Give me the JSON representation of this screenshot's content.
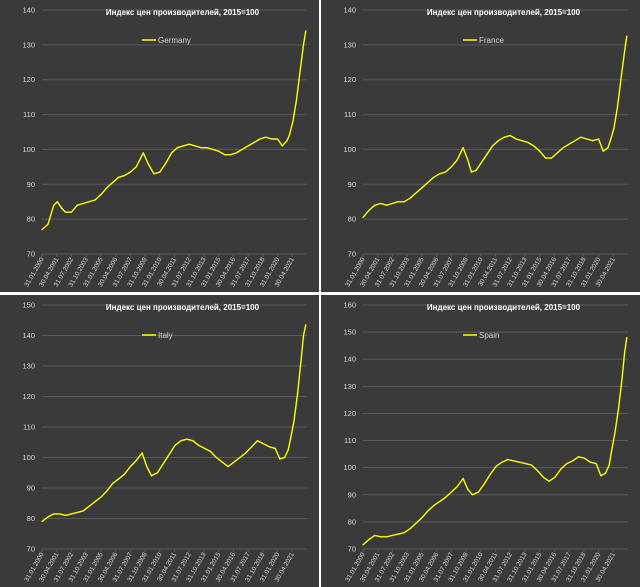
{
  "colors": {
    "background": "#3a3a3a",
    "line": "#ffff00",
    "grid": "#5a5a5a",
    "text": "#d9d9d9",
    "title": "#ffffff"
  },
  "chart_data": [
    {
      "type": "line",
      "title": "Индекс цен производителей, 2015=100",
      "series": [
        {
          "name": "Germany"
        }
      ],
      "ylim": [
        70,
        140
      ],
      "yticks": [
        70,
        80,
        90,
        100,
        110,
        120,
        130,
        140
      ],
      "xticks": [
        "31.01.2000",
        "30.04.2001",
        "31.07.2002",
        "31.10.2003",
        "31.01.2005",
        "30.04.2006",
        "31.07.2007",
        "31.10.2008",
        "31.01.2010",
        "30.04.2011",
        "31.07.2012",
        "31.10.2013",
        "31.01.2015",
        "30.04.2016",
        "31.07.2017",
        "31.10.2018",
        "31.01.2020",
        "30.04.2021"
      ],
      "grid": true,
      "legend": "top-left",
      "points": [
        [
          2000.0,
          77.0
        ],
        [
          2000.5,
          78.5
        ],
        [
          2001.0,
          84.0
        ],
        [
          2001.3,
          85.0
        ],
        [
          2001.7,
          83.0
        ],
        [
          2002.0,
          82.0
        ],
        [
          2002.5,
          82.0
        ],
        [
          2003.0,
          84.0
        ],
        [
          2003.5,
          84.5
        ],
        [
          2004.0,
          85.0
        ],
        [
          2004.5,
          85.5
        ],
        [
          2005.0,
          87.0
        ],
        [
          2005.5,
          89.0
        ],
        [
          2006.0,
          90.5
        ],
        [
          2006.5,
          92.0
        ],
        [
          2007.0,
          92.5
        ],
        [
          2007.5,
          93.5
        ],
        [
          2008.0,
          95.0
        ],
        [
          2008.6,
          99.0
        ],
        [
          2009.0,
          96.0
        ],
        [
          2009.5,
          93.0
        ],
        [
          2010.0,
          93.5
        ],
        [
          2010.5,
          96.0
        ],
        [
          2011.0,
          99.0
        ],
        [
          2011.5,
          100.5
        ],
        [
          2012.0,
          101.0
        ],
        [
          2012.5,
          101.5
        ],
        [
          2013.0,
          101.0
        ],
        [
          2013.5,
          100.5
        ],
        [
          2014.0,
          100.5
        ],
        [
          2014.5,
          100.0
        ],
        [
          2015.0,
          99.5
        ],
        [
          2015.5,
          98.5
        ],
        [
          2016.0,
          98.5
        ],
        [
          2016.5,
          99.0
        ],
        [
          2017.0,
          100.0
        ],
        [
          2017.5,
          101.0
        ],
        [
          2018.0,
          102.0
        ],
        [
          2018.5,
          103.0
        ],
        [
          2019.0,
          103.5
        ],
        [
          2019.5,
          103.0
        ],
        [
          2020.0,
          103.0
        ],
        [
          2020.4,
          101.0
        ],
        [
          2020.8,
          102.5
        ],
        [
          2021.0,
          104.0
        ],
        [
          2021.3,
          108.0
        ],
        [
          2021.6,
          114.0
        ],
        [
          2021.9,
          122.0
        ],
        [
          2022.2,
          130.0
        ],
        [
          2022.4,
          134.0
        ]
      ]
    },
    {
      "type": "line",
      "title": "Индекс цен производителей, 2015=100",
      "series": [
        {
          "name": "France"
        }
      ],
      "ylim": [
        70,
        140
      ],
      "yticks": [
        70,
        80,
        90,
        100,
        110,
        120,
        130,
        140
      ],
      "xticks": [
        "31.01.2000",
        "30.04.2001",
        "31.07.2002",
        "31.10.2003",
        "31.01.2005",
        "30.04.2006",
        "31.07.2007",
        "31.10.2008",
        "31.01.2010",
        "30.04.2011",
        "31.07.2012",
        "31.10.2013",
        "31.01.2015",
        "30.04.2016",
        "31.07.2017",
        "31.10.2018",
        "31.01.2020",
        "30.04.2021"
      ],
      "grid": true,
      "legend": "top-left",
      "points": [
        [
          2000.0,
          80.5
        ],
        [
          2000.5,
          82.5
        ],
        [
          2001.0,
          84.0
        ],
        [
          2001.5,
          84.5
        ],
        [
          2002.0,
          84.0
        ],
        [
          2002.5,
          84.5
        ],
        [
          2003.0,
          85.0
        ],
        [
          2003.5,
          85.0
        ],
        [
          2004.0,
          86.0
        ],
        [
          2004.5,
          87.5
        ],
        [
          2005.0,
          89.0
        ],
        [
          2005.5,
          90.5
        ],
        [
          2006.0,
          92.0
        ],
        [
          2006.5,
          93.0
        ],
        [
          2007.0,
          93.5
        ],
        [
          2007.5,
          95.0
        ],
        [
          2008.0,
          97.0
        ],
        [
          2008.5,
          100.5
        ],
        [
          2008.9,
          97.0
        ],
        [
          2009.2,
          93.5
        ],
        [
          2009.6,
          94.0
        ],
        [
          2010.0,
          96.0
        ],
        [
          2010.5,
          98.5
        ],
        [
          2011.0,
          101.0
        ],
        [
          2011.5,
          102.5
        ],
        [
          2012.0,
          103.5
        ],
        [
          2012.5,
          104.0
        ],
        [
          2013.0,
          103.0
        ],
        [
          2013.5,
          102.5
        ],
        [
          2014.0,
          102.0
        ],
        [
          2014.5,
          101.0
        ],
        [
          2015.0,
          99.5
        ],
        [
          2015.5,
          97.5
        ],
        [
          2016.0,
          97.5
        ],
        [
          2016.5,
          99.0
        ],
        [
          2017.0,
          100.5
        ],
        [
          2017.5,
          101.5
        ],
        [
          2018.0,
          102.5
        ],
        [
          2018.5,
          103.5
        ],
        [
          2019.0,
          103.0
        ],
        [
          2019.5,
          102.5
        ],
        [
          2020.0,
          103.0
        ],
        [
          2020.4,
          99.5
        ],
        [
          2020.8,
          100.5
        ],
        [
          2021.0,
          102.5
        ],
        [
          2021.3,
          106.0
        ],
        [
          2021.6,
          112.0
        ],
        [
          2021.9,
          120.0
        ],
        [
          2022.2,
          128.0
        ],
        [
          2022.4,
          132.5
        ]
      ]
    },
    {
      "type": "line",
      "title": "Индекс цен производителей, 2015=100",
      "series": [
        {
          "name": "Italy"
        }
      ],
      "ylim": [
        70,
        150
      ],
      "yticks": [
        70,
        80,
        90,
        100,
        110,
        120,
        130,
        140,
        150
      ],
      "xticks": [
        "31.01.2000",
        "30.04.2001",
        "31.07.2002",
        "31.10.2003",
        "31.01.2005",
        "30.04.2006",
        "31.07.2007",
        "31.10.2008",
        "31.01.2010",
        "30.04.2011",
        "31.07.2012",
        "31.10.2013",
        "31.01.2015",
        "30.04.2016",
        "31.07.2017",
        "31.10.2018",
        "31.01.2020",
        "30.04.2021"
      ],
      "grid": true,
      "legend": "top-left",
      "points": [
        [
          2000.0,
          79.0
        ],
        [
          2000.5,
          80.5
        ],
        [
          2001.0,
          81.5
        ],
        [
          2001.5,
          81.5
        ],
        [
          2002.0,
          81.0
        ],
        [
          2002.5,
          81.5
        ],
        [
          2003.0,
          82.0
        ],
        [
          2003.5,
          82.5
        ],
        [
          2004.0,
          84.0
        ],
        [
          2004.5,
          85.5
        ],
        [
          2005.0,
          87.0
        ],
        [
          2005.5,
          89.0
        ],
        [
          2006.0,
          91.5
        ],
        [
          2006.5,
          93.0
        ],
        [
          2007.0,
          94.5
        ],
        [
          2007.5,
          97.0
        ],
        [
          2008.0,
          99.0
        ],
        [
          2008.5,
          101.5
        ],
        [
          2008.9,
          97.0
        ],
        [
          2009.3,
          94.0
        ],
        [
          2009.8,
          95.0
        ],
        [
          2010.3,
          98.0
        ],
        [
          2010.8,
          101.0
        ],
        [
          2011.3,
          104.0
        ],
        [
          2011.8,
          105.5
        ],
        [
          2012.3,
          106.0
        ],
        [
          2012.8,
          105.5
        ],
        [
          2013.3,
          104.0
        ],
        [
          2013.8,
          103.0
        ],
        [
          2014.3,
          102.0
        ],
        [
          2014.8,
          100.0
        ],
        [
          2015.3,
          98.5
        ],
        [
          2015.8,
          97.0
        ],
        [
          2016.3,
          98.5
        ],
        [
          2016.8,
          100.0
        ],
        [
          2017.3,
          101.5
        ],
        [
          2017.8,
          103.5
        ],
        [
          2018.3,
          105.5
        ],
        [
          2018.8,
          104.5
        ],
        [
          2019.3,
          103.5
        ],
        [
          2019.8,
          103.0
        ],
        [
          2020.2,
          99.5
        ],
        [
          2020.6,
          100.0
        ],
        [
          2020.9,
          102.5
        ],
        [
          2021.1,
          106.0
        ],
        [
          2021.4,
          112.0
        ],
        [
          2021.7,
          121.0
        ],
        [
          2022.0,
          132.0
        ],
        [
          2022.2,
          140.0
        ],
        [
          2022.4,
          143.5
        ]
      ]
    },
    {
      "type": "line",
      "title": "Индекс цен производителей, 2015=100",
      "series": [
        {
          "name": "Spain"
        }
      ],
      "ylim": [
        70,
        160
      ],
      "yticks": [
        70,
        80,
        90,
        100,
        110,
        120,
        130,
        140,
        150,
        160
      ],
      "xticks": [
        "31.01.2000",
        "30.04.2001",
        "31.07.2002",
        "31.10.2003",
        "31.01.2005",
        "30.04.2006",
        "31.07.2007",
        "31.10.2008",
        "31.01.2010",
        "30.04.2011",
        "31.07.2012",
        "31.10.2013",
        "31.01.2015",
        "30.04.2016",
        "31.07.2017",
        "31.10.2018",
        "31.01.2020",
        "30.04.2021"
      ],
      "grid": true,
      "legend": "top-left",
      "points": [
        [
          2000.0,
          71.5
        ],
        [
          2000.5,
          73.5
        ],
        [
          2001.0,
          75.0
        ],
        [
          2001.5,
          74.5
        ],
        [
          2002.0,
          74.5
        ],
        [
          2002.5,
          75.0
        ],
        [
          2003.0,
          75.5
        ],
        [
          2003.5,
          76.0
        ],
        [
          2004.0,
          77.5
        ],
        [
          2004.5,
          79.5
        ],
        [
          2005.0,
          81.5
        ],
        [
          2005.5,
          84.0
        ],
        [
          2006.0,
          86.0
        ],
        [
          2006.5,
          87.5
        ],
        [
          2007.0,
          89.0
        ],
        [
          2007.5,
          91.0
        ],
        [
          2008.0,
          93.0
        ],
        [
          2008.5,
          96.0
        ],
        [
          2008.9,
          92.0
        ],
        [
          2009.3,
          90.0
        ],
        [
          2009.8,
          91.0
        ],
        [
          2010.3,
          94.0
        ],
        [
          2010.8,
          97.5
        ],
        [
          2011.3,
          100.5
        ],
        [
          2011.8,
          102.0
        ],
        [
          2012.3,
          103.0
        ],
        [
          2012.8,
          102.5
        ],
        [
          2013.3,
          102.0
        ],
        [
          2013.8,
          101.5
        ],
        [
          2014.3,
          101.0
        ],
        [
          2014.8,
          99.0
        ],
        [
          2015.3,
          96.5
        ],
        [
          2015.8,
          95.0
        ],
        [
          2016.3,
          96.5
        ],
        [
          2016.8,
          99.5
        ],
        [
          2017.3,
          101.5
        ],
        [
          2017.8,
          102.5
        ],
        [
          2018.3,
          104.0
        ],
        [
          2018.8,
          103.5
        ],
        [
          2019.3,
          102.0
        ],
        [
          2019.8,
          101.5
        ],
        [
          2020.2,
          97.0
        ],
        [
          2020.6,
          98.0
        ],
        [
          2020.9,
          101.0
        ],
        [
          2021.1,
          106.0
        ],
        [
          2021.4,
          113.0
        ],
        [
          2021.7,
          122.0
        ],
        [
          2022.0,
          133.0
        ],
        [
          2022.2,
          142.0
        ],
        [
          2022.4,
          148.0
        ]
      ]
    }
  ]
}
